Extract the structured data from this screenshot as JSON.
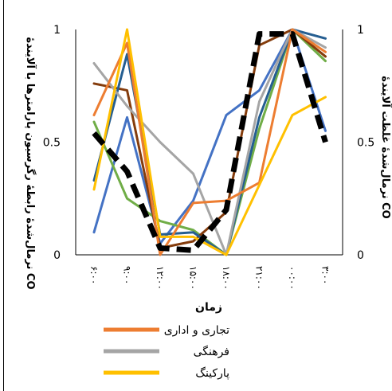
{
  "chart_data": {
    "type": "line",
    "xlabel": "زمان",
    "ylabel_left": "نرمال‌شدهٔ رابطهٔ رگرسیون پارامترها با آلایندهٔ CO",
    "ylabel_right": "نرمال‌شدهٔ غلظت آلایندهٔ CO",
    "categories": [
      "۶:۰۰",
      "۹:۰۰",
      "۱۲:۰۰",
      "۱۵:۰۰",
      "۱۸:۰۰",
      "۲۱:۰۰",
      "۰۰:۰۰",
      "۳:۰۰"
    ],
    "ylim": [
      0,
      1
    ],
    "yticks_left": [
      "0",
      "0.5",
      "1"
    ],
    "yticks_right": [
      "0",
      "0.5",
      "1"
    ],
    "y_right_ticks_values": [
      0,
      0.5,
      1
    ],
    "grid": false,
    "legend_position": "bottom",
    "series": [
      {
        "name": "",
        "color": "#4472C4",
        "dashed": false,
        "width": 3,
        "values": [
          0.1,
          0.61,
          0.05,
          0.24,
          0.62,
          0.73,
          1.0,
          0.55
        ]
      },
      {
        "name": "",
        "color": "#70AD47",
        "dashed": false,
        "width": 3,
        "values": [
          0.59,
          0.25,
          0.15,
          0.11,
          0.0,
          0.56,
          1.0,
          0.86
        ]
      },
      {
        "name": "",
        "color": "#843C0C",
        "dashed": false,
        "width": 3,
        "values": [
          0.76,
          0.73,
          0.03,
          0.06,
          0.19,
          0.93,
          1.0,
          0.88
        ]
      },
      {
        "name": "",
        "color": "#255E91",
        "dashed": false,
        "width": 3,
        "values": [
          0.33,
          0.89,
          0.09,
          0.1,
          0.0,
          0.61,
          1.0,
          0.96
        ]
      },
      {
        "name": "فرهنگی",
        "color": "#A5A5A5",
        "dashed": false,
        "width": 3,
        "values": [
          0.85,
          0.66,
          0.5,
          0.36,
          0.0,
          0.68,
          1.0,
          0.92
        ]
      },
      {
        "name": "تجاری و اداری",
        "color": "#ED7D31",
        "dashed": false,
        "width": 3,
        "values": [
          0.62,
          0.94,
          0.0,
          0.23,
          0.24,
          0.32,
          1.0,
          0.9
        ]
      },
      {
        "name": "پارکینگ",
        "color": "#FFC000",
        "dashed": false,
        "width": 3,
        "values": [
          0.29,
          1.0,
          0.08,
          0.08,
          0.0,
          0.31,
          0.62,
          0.7
        ]
      },
      {
        "name": "",
        "color": "#000000",
        "dashed": true,
        "width": 7,
        "values": [
          0.54,
          0.37,
          0.03,
          0.02,
          0.2,
          0.98,
          0.98,
          0.5
        ]
      }
    ],
    "legend": [
      {
        "label": "تجاری و اداری",
        "color": "#ED7D31"
      },
      {
        "label": "فرهنگی",
        "color": "#A5A5A5"
      },
      {
        "label": "پارکینگ",
        "color": "#FFC000"
      }
    ]
  }
}
